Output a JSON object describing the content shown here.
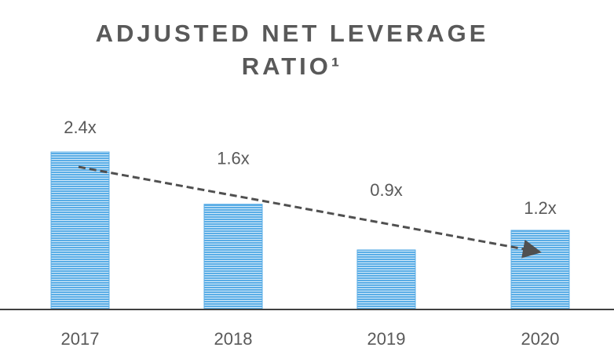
{
  "chart_data": {
    "type": "bar",
    "title": "ADJUSTED NET LEVERAGE RATIO¹",
    "categories": [
      "2017",
      "2018",
      "2019",
      "2020"
    ],
    "values": [
      2.4,
      1.6,
      0.9,
      1.2
    ],
    "value_labels": [
      "2.4x",
      "1.6x",
      "0.9x",
      "1.2x"
    ],
    "color": "#5aade6"
  }
}
